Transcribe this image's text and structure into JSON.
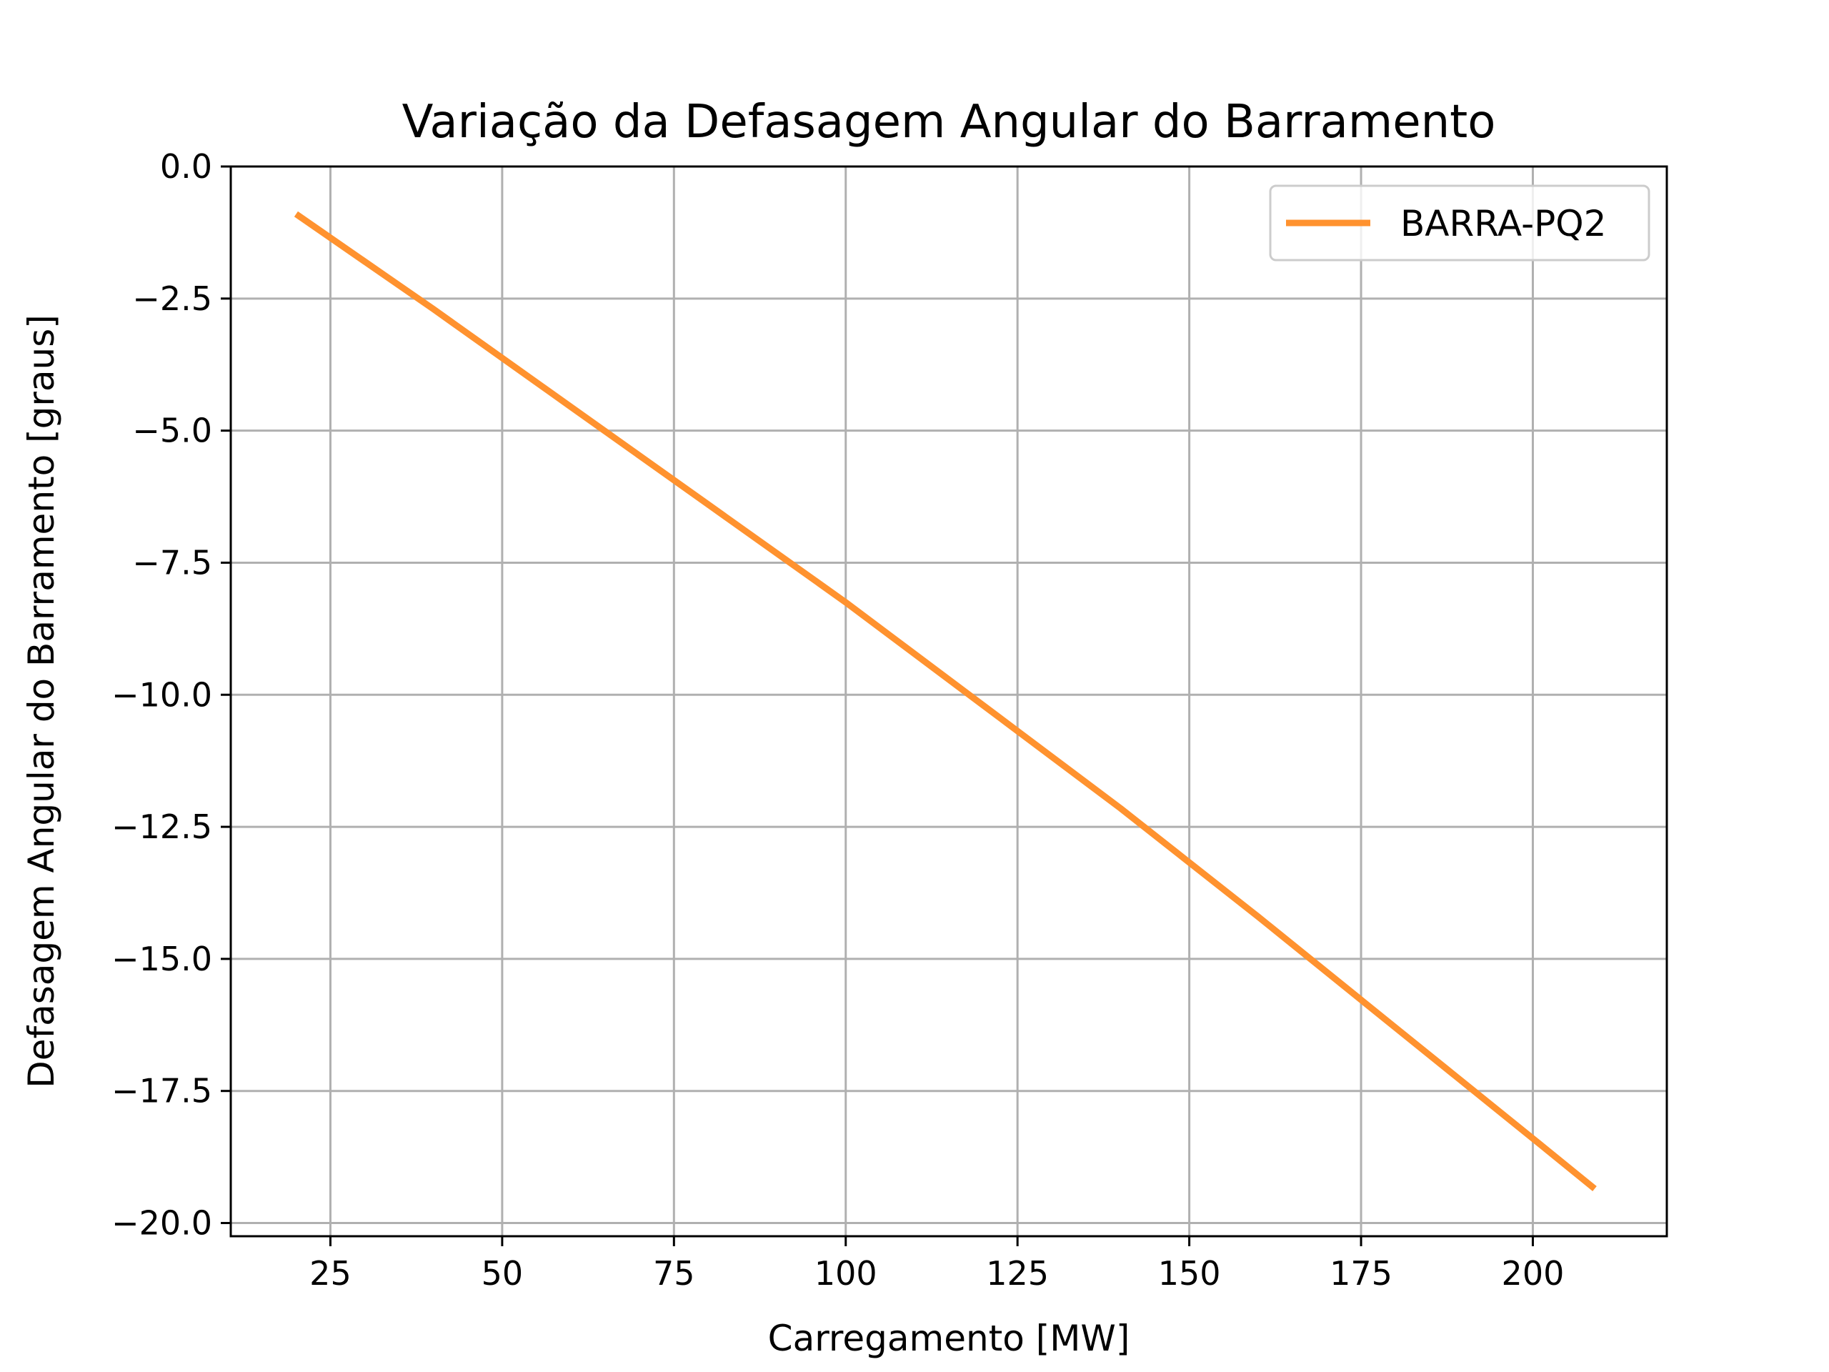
{
  "chart_data": {
    "type": "line",
    "title": "Variação da Defasagem Angular do Barramento",
    "xlabel": "Carregamento [MW]",
    "ylabel": "Defasagem Angular do Barramento [graus]",
    "xlim": [
      10.5,
      219.5
    ],
    "ylim": [
      -20.25,
      0.0
    ],
    "xticks": [
      25,
      50,
      75,
      100,
      125,
      150,
      175,
      200
    ],
    "yticks": [
      0.0,
      -2.5,
      -5.0,
      -7.5,
      -10.0,
      -12.5,
      -15.0,
      -17.5,
      -20.0
    ],
    "xtick_labels": [
      "25",
      "50",
      "75",
      "100",
      "125",
      "150",
      "175",
      "200"
    ],
    "ytick_labels": [
      "0.0",
      "−2.5",
      "−5.0",
      "−7.5",
      "−10.0",
      "−12.5",
      "−15.0",
      "−17.5",
      "−20.0"
    ],
    "grid": true,
    "legend_position": "top-right",
    "series": [
      {
        "name": "BARRA-PQ2",
        "color": "#ff922f",
        "x": [
          20,
          40,
          60,
          80,
          100,
          120,
          140,
          160,
          180,
          200,
          209
        ],
        "y": [
          -0.9,
          -2.7,
          -4.55,
          -6.4,
          -8.25,
          -10.2,
          -12.15,
          -14.2,
          -16.3,
          -18.4,
          -19.35
        ]
      }
    ]
  }
}
